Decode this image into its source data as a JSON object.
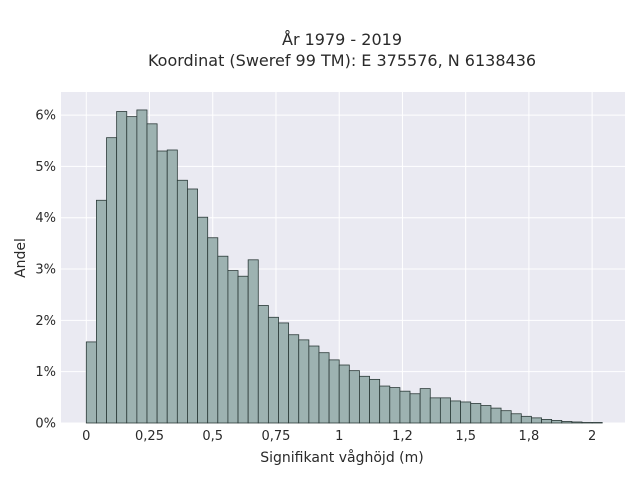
{
  "chart_data": {
    "type": "bar",
    "title_lines": [
      "År 1979 - 2019",
      "Koordinat (Sweref 99 TM): E 375576, N 6138436"
    ],
    "xlabel": "Signifikant våghöjd (m)",
    "ylabel": "Andel",
    "xlim": [
      -0.1,
      2.13
    ],
    "ylim": [
      0,
      0.0645
    ],
    "x_ticks": [
      0,
      0.25,
      0.5,
      0.75,
      1,
      1.25,
      1.5,
      1.75,
      2
    ],
    "x_tick_labels": [
      "0",
      "0,25",
      "0,5",
      "0,75",
      "1",
      "1,2",
      "1,5",
      "1,8",
      "2"
    ],
    "y_ticks": [
      0,
      0.01,
      0.02,
      0.03,
      0.04,
      0.05,
      0.06
    ],
    "y_tick_labels": [
      "0%",
      "1%",
      "2%",
      "3%",
      "4%",
      "5%",
      "6%"
    ],
    "grid": true,
    "bin_width": 0.04,
    "bin_start": 0,
    "values": [
      0.0158,
      0.0434,
      0.0556,
      0.0607,
      0.0597,
      0.061,
      0.0583,
      0.053,
      0.0532,
      0.0473,
      0.0456,
      0.0401,
      0.0361,
      0.0325,
      0.0297,
      0.0286,
      0.0318,
      0.0229,
      0.0206,
      0.0195,
      0.0172,
      0.0162,
      0.015,
      0.0137,
      0.0123,
      0.0113,
      0.0102,
      0.0091,
      0.0085,
      0.0072,
      0.0069,
      0.0062,
      0.0057,
      0.0067,
      0.0049,
      0.0049,
      0.0043,
      0.0041,
      0.0038,
      0.0034,
      0.0029,
      0.0024,
      0.0018,
      0.0013,
      0.001,
      0.0007,
      0.0005,
      0.0003,
      0.0002,
      0.0001,
      0.0001
    ],
    "colors": {
      "bar_fill": "#9db2b1",
      "bar_stroke": "#2b3a38",
      "plot_background": "#eaeaf2",
      "grid": "#ffffff"
    }
  }
}
